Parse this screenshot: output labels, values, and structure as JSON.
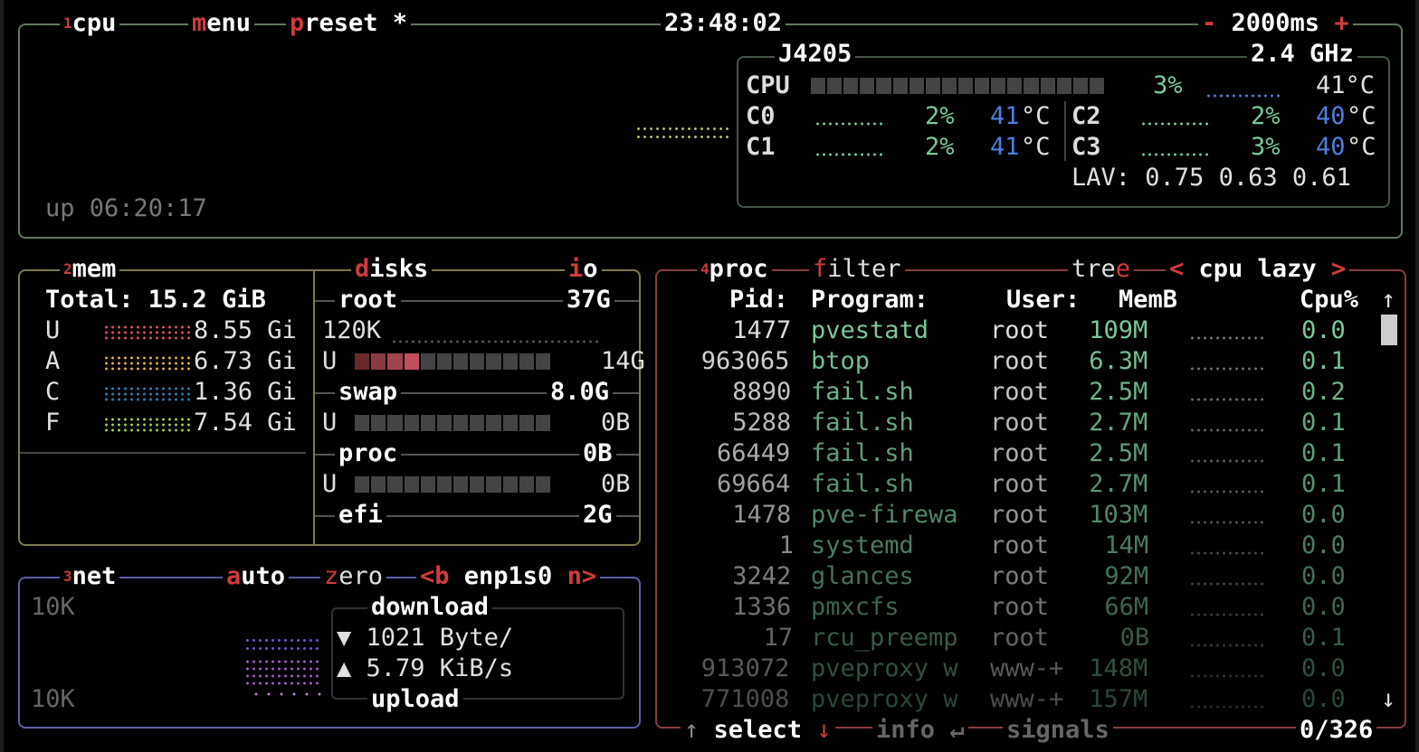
{
  "colors": {
    "cpu_border": "#5d7a5d",
    "mem_border": "#7d7a4e",
    "net_border": "#5f5fa8",
    "proc_border": "#8a3d3d",
    "accent": "#d03b3b",
    "value_green": "#7ac99a",
    "temp_blue": "#4f7ee0"
  },
  "cpu": {
    "num": "1",
    "title": "cpu",
    "menu_key": "m",
    "menu_rest": "enu",
    "preset_key": "p",
    "preset_rest": "reset *",
    "clock": "23:48:02",
    "minus": "-",
    "interval": "2000ms",
    "plus": "+",
    "uptime": "up 06:20:17",
    "model": "J4205",
    "freq": "2.4 GHz",
    "total_label": "CPU",
    "total_pct": "3%",
    "total_temp": "41°C",
    "cores": [
      {
        "name": "C0",
        "pct": "2%",
        "temp": "41",
        "unit": "°C"
      },
      {
        "name": "C1",
        "pct": "2%",
        "temp": "41",
        "unit": "°C"
      },
      {
        "name": "C2",
        "pct": "2%",
        "temp": "40",
        "unit": "°C"
      },
      {
        "name": "C3",
        "pct": "3%",
        "temp": "40",
        "unit": "°C"
      }
    ],
    "lav_label": "LAV:",
    "lav": "0.75 0.63 0.61",
    "total_usage": 0.03
  },
  "mem": {
    "num": "2",
    "title": "mem",
    "total": "Total: 15.2 GiB",
    "rows": [
      {
        "k": "U",
        "v": "8.55 Gi",
        "c": "#e05060"
      },
      {
        "k": "A",
        "v": "6.73 Gi",
        "c": "#e0b040"
      },
      {
        "k": "C",
        "v": "1.36 Gi",
        "c": "#3080b0"
      },
      {
        "k": "F",
        "v": "7.54 Gi",
        "c": "#a0d040"
      }
    ]
  },
  "disks": {
    "key": "d",
    "rest": "isks",
    "io_key": "i",
    "io_rest": "o",
    "root": "root",
    "root_size": "37G",
    "io": "120K",
    "root_u": "U",
    "root_used": "14G",
    "root_usage": 0.3,
    "swap": "swap",
    "swap_size": "8.0G",
    "swap_u": "U",
    "swap_used": "0B",
    "proc": "proc",
    "proc_size": "0B",
    "proc_u": "U",
    "proc_used": "0B",
    "efi": "efi",
    "efi_size": "2G"
  },
  "net": {
    "num": "3",
    "title": "net",
    "auto_key": "a",
    "auto_rest": "uto",
    "zero_key": "z",
    "zero_rest": "ero",
    "prev": "<b",
    "iface": "enp1s0",
    "next": "n>",
    "scale_top": "10K",
    "scale_bottom": "10K",
    "download": "download",
    "down_icon": "▼",
    "down_val": "1021 Byte/",
    "up_icon": "▲",
    "up_val": "5.79 KiB/s",
    "upload": "upload"
  },
  "proc": {
    "num": "4",
    "title": "proc",
    "filter_key": "f",
    "filter_rest": "ilter",
    "tree_rest": "tre",
    "tree_key": "e",
    "sort_prev": "<",
    "sort": "cpu lazy",
    "sort_next": ">",
    "headers": {
      "pid": "Pid:",
      "program": "Program:",
      "user": "User:",
      "mem": "MemB",
      "cpu": "Cpu%"
    },
    "rows": [
      {
        "pid": "1477",
        "program": "pvestatd",
        "user": "root",
        "mem": "109M",
        "cpu": "0.0"
      },
      {
        "pid": "963065",
        "program": "btop",
        "user": "root",
        "mem": "6.3M",
        "cpu": "0.1"
      },
      {
        "pid": "8890",
        "program": "fail.sh",
        "user": "root",
        "mem": "2.5M",
        "cpu": "0.2"
      },
      {
        "pid": "5288",
        "program": "fail.sh",
        "user": "root",
        "mem": "2.7M",
        "cpu": "0.1"
      },
      {
        "pid": "66449",
        "program": "fail.sh",
        "user": "root",
        "mem": "2.5M",
        "cpu": "0.1"
      },
      {
        "pid": "69664",
        "program": "fail.sh",
        "user": "root",
        "mem": "2.7M",
        "cpu": "0.1"
      },
      {
        "pid": "1478",
        "program": "pve-firewa",
        "user": "root",
        "mem": "103M",
        "cpu": "0.0"
      },
      {
        "pid": "1",
        "program": "systemd",
        "user": "root",
        "mem": "14M",
        "cpu": "0.0"
      },
      {
        "pid": "3242",
        "program": "glances",
        "user": "root",
        "mem": "92M",
        "cpu": "0.0"
      },
      {
        "pid": "1336",
        "program": "pmxcfs",
        "user": "root",
        "mem": "66M",
        "cpu": "0.0"
      },
      {
        "pid": "17",
        "program": "rcu_preemp",
        "user": "root",
        "mem": "0B",
        "cpu": "0.1"
      },
      {
        "pid": "913072",
        "program": "pveproxy w",
        "user": "www-+",
        "mem": "148M",
        "cpu": "0.0"
      },
      {
        "pid": "771008",
        "program": "pveproxy w",
        "user": "www-+",
        "mem": "157M",
        "cpu": "0.0"
      }
    ],
    "up_arrow": "↑",
    "down_arrow": "↓",
    "sel_up": "↑",
    "select": "select",
    "sel_down": "↓",
    "info": "info",
    "enter": "↵",
    "signals": "signals",
    "count": "0/326"
  }
}
